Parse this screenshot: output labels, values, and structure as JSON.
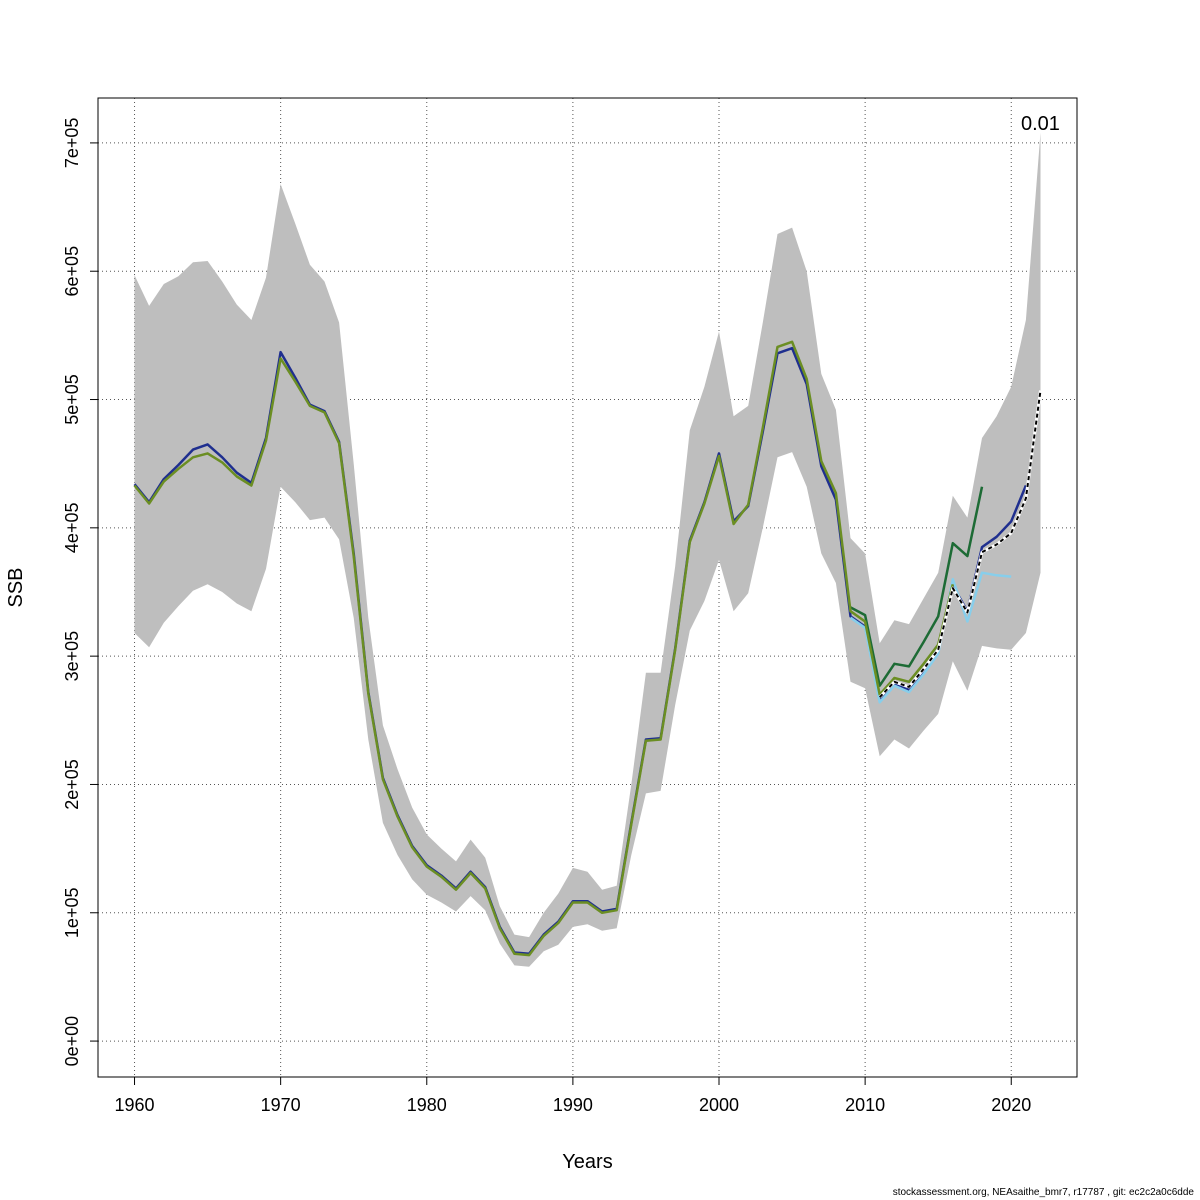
{
  "chart_data": {
    "type": "line",
    "title": "",
    "xlabel": "Years",
    "ylabel": "SSB",
    "corner_label": "0.01",
    "xlim": [
      1957.5,
      2024.5
    ],
    "ylim": [
      -28000,
      735000
    ],
    "x_ticks": [
      1960,
      1970,
      1980,
      1990,
      2000,
      2010,
      2020
    ],
    "x_tick_labels": [
      "1960",
      "1970",
      "1980",
      "1990",
      "2000",
      "2010",
      "2020"
    ],
    "y_ticks": [
      0,
      100000,
      200000,
      300000,
      400000,
      500000,
      600000,
      700000
    ],
    "y_tick_labels": [
      "0e+00",
      "1e+05",
      "2e+05",
      "3e+05",
      "4e+05",
      "5e+05",
      "6e+05",
      "7e+05"
    ],
    "grid": true,
    "confidence_band": {
      "color": "#bebebe",
      "x": [
        1960,
        1961,
        1962,
        1963,
        1964,
        1965,
        1966,
        1967,
        1968,
        1969,
        1970,
        1971,
        1972,
        1973,
        1974,
        1975,
        1976,
        1977,
        1978,
        1979,
        1980,
        1981,
        1982,
        1983,
        1984,
        1985,
        1986,
        1987,
        1988,
        1989,
        1990,
        1991,
        1992,
        1993,
        1994,
        1995,
        1996,
        1997,
        1998,
        1999,
        2000,
        2001,
        2002,
        2003,
        2004,
        2005,
        2006,
        2007,
        2008,
        2009,
        2010,
        2011,
        2012,
        2013,
        2014,
        2015,
        2016,
        2017,
        2018,
        2019,
        2020,
        2021,
        2022
      ],
      "upper": [
        597000,
        573000,
        590000,
        596000,
        607000,
        608000,
        592000,
        574000,
        562000,
        595000,
        668000,
        637000,
        605000,
        592000,
        560000,
        450000,
        330000,
        246000,
        212000,
        182000,
        161000,
        150000,
        140000,
        157000,
        143000,
        105000,
        83000,
        81000,
        100000,
        115000,
        135000,
        132000,
        118000,
        121000,
        200000,
        287000,
        287000,
        370000,
        476000,
        510000,
        553000,
        487000,
        495000,
        560000,
        629000,
        634000,
        600000,
        520000,
        492000,
        392000,
        380000,
        310000,
        328000,
        325000,
        345000,
        365000,
        425000,
        408000,
        470000,
        487000,
        510000,
        562000,
        708000
      ],
      "lower": [
        318000,
        307000,
        326000,
        339000,
        351000,
        356000,
        350000,
        341000,
        335000,
        368000,
        432000,
        420000,
        406000,
        408000,
        391000,
        330000,
        235000,
        170000,
        145000,
        126000,
        114000,
        108000,
        101000,
        113000,
        102000,
        76000,
        59000,
        58000,
        70000,
        75000,
        89000,
        91000,
        86000,
        88000,
        145000,
        193000,
        195000,
        262000,
        320000,
        343000,
        375000,
        335000,
        349000,
        400000,
        455000,
        459000,
        432000,
        380000,
        357000,
        280000,
        275000,
        222000,
        235000,
        228000,
        242000,
        255000,
        296000,
        273000,
        308000,
        306000,
        305000,
        318000,
        365000
      ]
    },
    "series": [
      {
        "color": "#1f2f8f",
        "dash": false,
        "x": [
          1960,
          1961,
          1962,
          1963,
          1964,
          1965,
          1966,
          1967,
          1968,
          1969,
          1970,
          1971,
          1972,
          1973,
          1974,
          1975,
          1976,
          1977,
          1978,
          1979,
          1980,
          1981,
          1982,
          1983,
          1984,
          1985,
          1986,
          1987,
          1988,
          1989,
          1990,
          1991,
          1992,
          1993,
          1994,
          1995,
          1996,
          1997,
          1998,
          1999,
          2000,
          2001,
          2002,
          2003,
          2004,
          2005,
          2006,
          2007,
          2008,
          2009,
          2010,
          2011,
          2012,
          2013,
          2014,
          2015,
          2016,
          2017,
          2018,
          2019,
          2020,
          2021
        ],
        "values": [
          434000,
          420000,
          438000,
          449000,
          461000,
          465000,
          455000,
          443000,
          435000,
          470000,
          537000,
          517000,
          496000,
          491000,
          467000,
          380000,
          272000,
          205000,
          176000,
          152000,
          137000,
          129000,
          119000,
          132000,
          120000,
          89000,
          69000,
          68000,
          83000,
          93000,
          109000,
          109000,
          101000,
          103000,
          170000,
          235000,
          236000,
          306000,
          390000,
          420000,
          458000,
          405000,
          417000,
          475000,
          536000,
          540000,
          512000,
          448000,
          422000,
          331000,
          323000,
          267000,
          278000,
          274000,
          288000,
          305000,
          355000,
          335000,
          385000,
          393000,
          405000,
          433000
        ]
      },
      {
        "color": "#87ceeb",
        "dash": false,
        "x": [
          2009,
          2010,
          2011,
          2012,
          2013,
          2014,
          2015,
          2016,
          2017,
          2018,
          2019,
          2020
        ],
        "values": [
          330000,
          322000,
          264000,
          277000,
          272000,
          286000,
          302000,
          360000,
          327000,
          365000,
          363000,
          362000
        ]
      },
      {
        "color": "#1d6b35",
        "dash": false,
        "x": [
          2009,
          2010,
          2011,
          2012,
          2013,
          2014,
          2015,
          2016,
          2017,
          2018
        ],
        "values": [
          338000,
          332000,
          277000,
          294000,
          292000,
          311000,
          331000,
          388000,
          378000,
          432000
        ]
      },
      {
        "color": "#6b8e23",
        "dash": false,
        "x": [
          1960,
          1961,
          1962,
          1963,
          1964,
          1965,
          1966,
          1967,
          1968,
          1969,
          1970,
          1971,
          1972,
          1973,
          1974,
          1975,
          1976,
          1977,
          1978,
          1979,
          1980,
          1981,
          1982,
          1983,
          1984,
          1985,
          1986,
          1987,
          1988,
          1989,
          1990,
          1991,
          1992,
          1993,
          1994,
          1995,
          1996,
          1997,
          1998,
          1999,
          2000,
          2001,
          2002,
          2003,
          2004,
          2005,
          2006,
          2007,
          2008,
          2009,
          2010,
          2011,
          2012,
          2013,
          2014,
          2015,
          2016
        ],
        "values": [
          433000,
          419000,
          436000,
          446000,
          455000,
          458000,
          451000,
          440000,
          433000,
          468000,
          532000,
          514000,
          495000,
          490000,
          466000,
          378000,
          271000,
          204000,
          175000,
          151000,
          136000,
          128000,
          118000,
          131000,
          119000,
          88000,
          68000,
          67000,
          82000,
          92000,
          108000,
          108000,
          100000,
          102000,
          169000,
          234000,
          235000,
          305000,
          389000,
          419000,
          456000,
          403000,
          418000,
          478000,
          541000,
          545000,
          516000,
          452000,
          427000,
          335000,
          327000,
          270000,
          283000,
          280000,
          294000,
          309000,
          356000
        ]
      },
      {
        "color": "#000000",
        "dash": true,
        "x": [
          2011,
          2012,
          2013,
          2014,
          2015,
          2016,
          2017,
          2018,
          2019,
          2020,
          2021,
          2022
        ],
        "values": [
          268000,
          280000,
          276000,
          290000,
          305000,
          353000,
          334000,
          381000,
          387000,
          396000,
          423000,
          507000
        ]
      }
    ]
  },
  "footer": "stockassessment.org, NEAsaithe_bmr7, r17787 , git: ec2c2a0c6dde"
}
